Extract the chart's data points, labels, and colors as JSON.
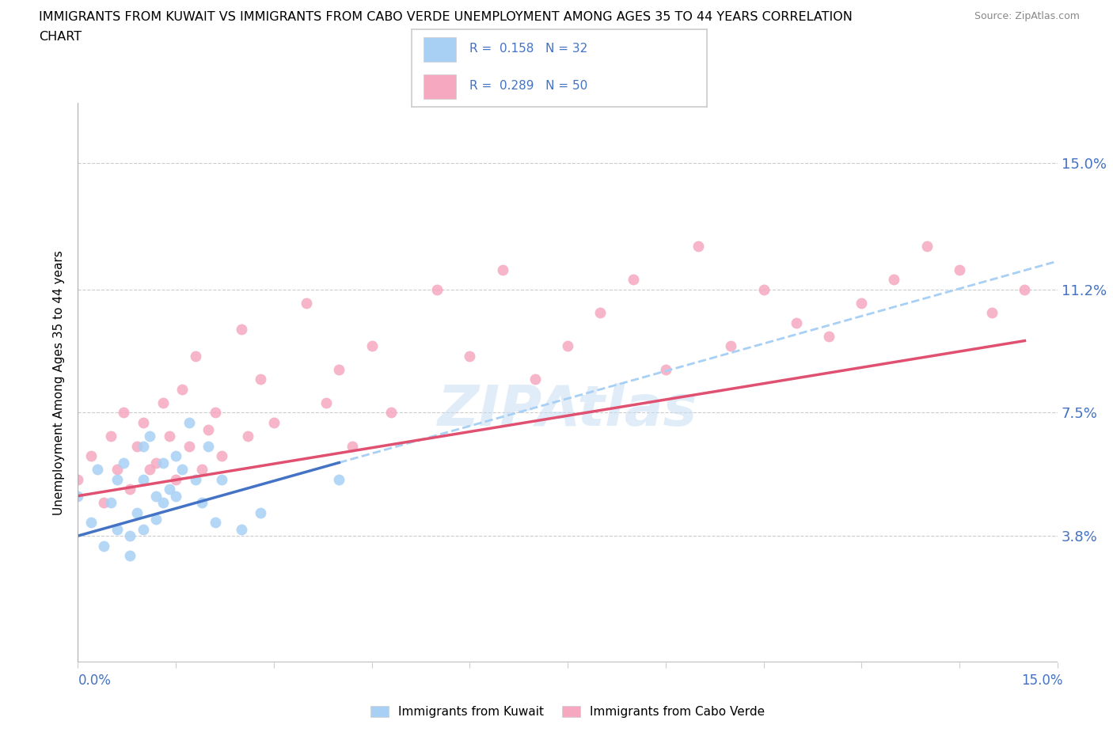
{
  "title_line1": "IMMIGRANTS FROM KUWAIT VS IMMIGRANTS FROM CABO VERDE UNEMPLOYMENT AMONG AGES 35 TO 44 YEARS CORRELATION",
  "title_line2": "CHART",
  "source": "Source: ZipAtlas.com",
  "ylabel": "Unemployment Among Ages 35 to 44 years",
  "ytick_labels": [
    "3.8%",
    "7.5%",
    "11.2%",
    "15.0%"
  ],
  "ytick_values": [
    0.038,
    0.075,
    0.112,
    0.15
  ],
  "xlim": [
    0.0,
    0.15
  ],
  "ylim": [
    0.0,
    0.168
  ],
  "legend_r1": "R = 0.158",
  "legend_n1": "N = 32",
  "legend_r2": "R = 0.289",
  "legend_n2": "N = 50",
  "color_kuwait": "#a8d0f5",
  "color_cabo": "#f5a8c0",
  "color_kuwait_line": "#4472c4",
  "color_cabo_line": "#e05070",
  "color_kuwait_dashed": "#a8d0f5",
  "watermark": "ZIPAtlas",
  "kuwait_scatter_x": [
    0.0,
    0.002,
    0.003,
    0.004,
    0.005,
    0.006,
    0.006,
    0.007,
    0.008,
    0.008,
    0.009,
    0.01,
    0.01,
    0.01,
    0.011,
    0.012,
    0.012,
    0.013,
    0.013,
    0.014,
    0.015,
    0.015,
    0.016,
    0.017,
    0.018,
    0.019,
    0.02,
    0.021,
    0.022,
    0.025,
    0.028,
    0.04
  ],
  "kuwait_scatter_y": [
    0.05,
    0.042,
    0.058,
    0.035,
    0.048,
    0.055,
    0.04,
    0.06,
    0.032,
    0.038,
    0.045,
    0.065,
    0.055,
    0.04,
    0.068,
    0.05,
    0.043,
    0.06,
    0.048,
    0.052,
    0.062,
    0.05,
    0.058,
    0.072,
    0.055,
    0.048,
    0.065,
    0.042,
    0.055,
    0.04,
    0.045,
    0.055
  ],
  "cabo_scatter_x": [
    0.0,
    0.002,
    0.004,
    0.005,
    0.006,
    0.007,
    0.008,
    0.009,
    0.01,
    0.011,
    0.012,
    0.013,
    0.014,
    0.015,
    0.016,
    0.017,
    0.018,
    0.019,
    0.02,
    0.021,
    0.022,
    0.025,
    0.026,
    0.028,
    0.03,
    0.035,
    0.038,
    0.04,
    0.042,
    0.045,
    0.048,
    0.055,
    0.06,
    0.065,
    0.07,
    0.075,
    0.08,
    0.085,
    0.09,
    0.095,
    0.1,
    0.105,
    0.11,
    0.115,
    0.12,
    0.125,
    0.13,
    0.135,
    0.14,
    0.145
  ],
  "cabo_scatter_y": [
    0.055,
    0.062,
    0.048,
    0.068,
    0.058,
    0.075,
    0.052,
    0.065,
    0.072,
    0.058,
    0.06,
    0.078,
    0.068,
    0.055,
    0.082,
    0.065,
    0.092,
    0.058,
    0.07,
    0.075,
    0.062,
    0.1,
    0.068,
    0.085,
    0.072,
    0.108,
    0.078,
    0.088,
    0.065,
    0.095,
    0.075,
    0.112,
    0.092,
    0.118,
    0.085,
    0.095,
    0.105,
    0.115,
    0.088,
    0.125,
    0.095,
    0.112,
    0.102,
    0.098,
    0.108,
    0.115,
    0.125,
    0.118,
    0.105,
    0.112
  ]
}
